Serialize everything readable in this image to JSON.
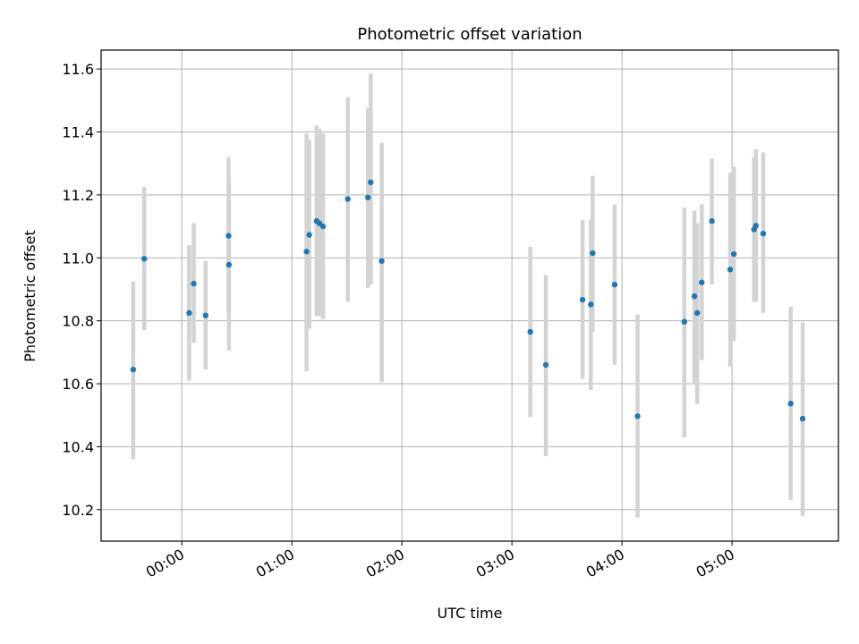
{
  "chart_data": {
    "type": "scatter",
    "title": "Photometric offset variation",
    "xlabel": "UTC time",
    "ylabel": "Photometric offset",
    "grid": true,
    "xlim_minutes": [
      -44,
      358
    ],
    "ylim": [
      10.1,
      11.66
    ],
    "xticks": [
      {
        "minutes": 0,
        "label": "00:00"
      },
      {
        "minutes": 60,
        "label": "01:00"
      },
      {
        "minutes": 120,
        "label": "02:00"
      },
      {
        "minutes": 180,
        "label": "03:00"
      },
      {
        "minutes": 240,
        "label": "04:00"
      },
      {
        "minutes": 300,
        "label": "05:00"
      }
    ],
    "yticks": [
      10.2,
      10.4,
      10.6,
      10.8,
      11.0,
      11.2,
      11.4,
      11.6
    ],
    "colors": {
      "marker": "#1f77b4",
      "errorbar": "#d3d3d3",
      "grid": "#b0b0b0"
    },
    "series": [
      {
        "name": "offset",
        "points": [
          {
            "t": -26.5,
            "y": 10.645,
            "lo": 10.36,
            "hi": 10.925
          },
          {
            "t": -20.5,
            "y": 10.997,
            "lo": 10.77,
            "hi": 11.225
          },
          {
            "t": 4.0,
            "y": 10.825,
            "lo": 10.61,
            "hi": 11.04
          },
          {
            "t": 6.5,
            "y": 10.918,
            "lo": 10.73,
            "hi": 11.11
          },
          {
            "t": 13.0,
            "y": 10.817,
            "lo": 10.645,
            "hi": 10.99
          },
          {
            "t": 25.5,
            "y": 11.07,
            "lo": 10.83,
            "hi": 11.32
          },
          {
            "t": 25.7,
            "y": 10.978,
            "lo": 10.705,
            "hi": 11.25
          },
          {
            "t": 68.0,
            "y": 11.02,
            "lo": 10.64,
            "hi": 11.395
          },
          {
            "t": 69.5,
            "y": 11.073,
            "lo": 10.775,
            "hi": 11.375
          },
          {
            "t": 73.5,
            "y": 11.117,
            "lo": 10.815,
            "hi": 11.42
          },
          {
            "t": 75.0,
            "y": 11.11,
            "lo": 10.815,
            "hi": 11.41
          },
          {
            "t": 77.0,
            "y": 11.1,
            "lo": 10.805,
            "hi": 11.395
          },
          {
            "t": 90.5,
            "y": 11.187,
            "lo": 10.86,
            "hi": 11.51
          },
          {
            "t": 101.5,
            "y": 11.192,
            "lo": 10.905,
            "hi": 11.475
          },
          {
            "t": 103.0,
            "y": 11.24,
            "lo": 10.915,
            "hi": 11.585
          },
          {
            "t": 109.0,
            "y": 10.99,
            "lo": 10.605,
            "hi": 11.365
          },
          {
            "t": 190.0,
            "y": 10.765,
            "lo": 10.495,
            "hi": 11.035
          },
          {
            "t": 198.5,
            "y": 10.66,
            "lo": 10.37,
            "hi": 10.945
          },
          {
            "t": 218.5,
            "y": 10.867,
            "lo": 10.615,
            "hi": 11.12
          },
          {
            "t": 223.0,
            "y": 10.852,
            "lo": 10.58,
            "hi": 11.12
          },
          {
            "t": 224.0,
            "y": 11.015,
            "lo": 10.765,
            "hi": 11.26
          },
          {
            "t": 236.0,
            "y": 10.915,
            "lo": 10.66,
            "hi": 11.17
          },
          {
            "t": 248.5,
            "y": 10.497,
            "lo": 10.175,
            "hi": 10.82
          },
          {
            "t": 274.0,
            "y": 10.797,
            "lo": 10.43,
            "hi": 11.16
          },
          {
            "t": 279.5,
            "y": 10.878,
            "lo": 10.6,
            "hi": 11.15
          },
          {
            "t": 281.0,
            "y": 10.825,
            "lo": 10.535,
            "hi": 11.11
          },
          {
            "t": 283.5,
            "y": 10.922,
            "lo": 10.675,
            "hi": 11.17
          },
          {
            "t": 289.0,
            "y": 11.117,
            "lo": 10.915,
            "hi": 11.315
          },
          {
            "t": 299.0,
            "y": 10.963,
            "lo": 10.655,
            "hi": 11.27
          },
          {
            "t": 301.0,
            "y": 11.012,
            "lo": 10.735,
            "hi": 11.29
          },
          {
            "t": 312.0,
            "y": 11.09,
            "lo": 10.86,
            "hi": 11.32
          },
          {
            "t": 313.0,
            "y": 11.102,
            "lo": 10.86,
            "hi": 11.345
          },
          {
            "t": 317.0,
            "y": 11.077,
            "lo": 10.825,
            "hi": 11.335
          },
          {
            "t": 332.0,
            "y": 10.537,
            "lo": 10.23,
            "hi": 10.845
          },
          {
            "t": 338.5,
            "y": 10.489,
            "lo": 10.18,
            "hi": 10.795
          }
        ]
      }
    ]
  }
}
